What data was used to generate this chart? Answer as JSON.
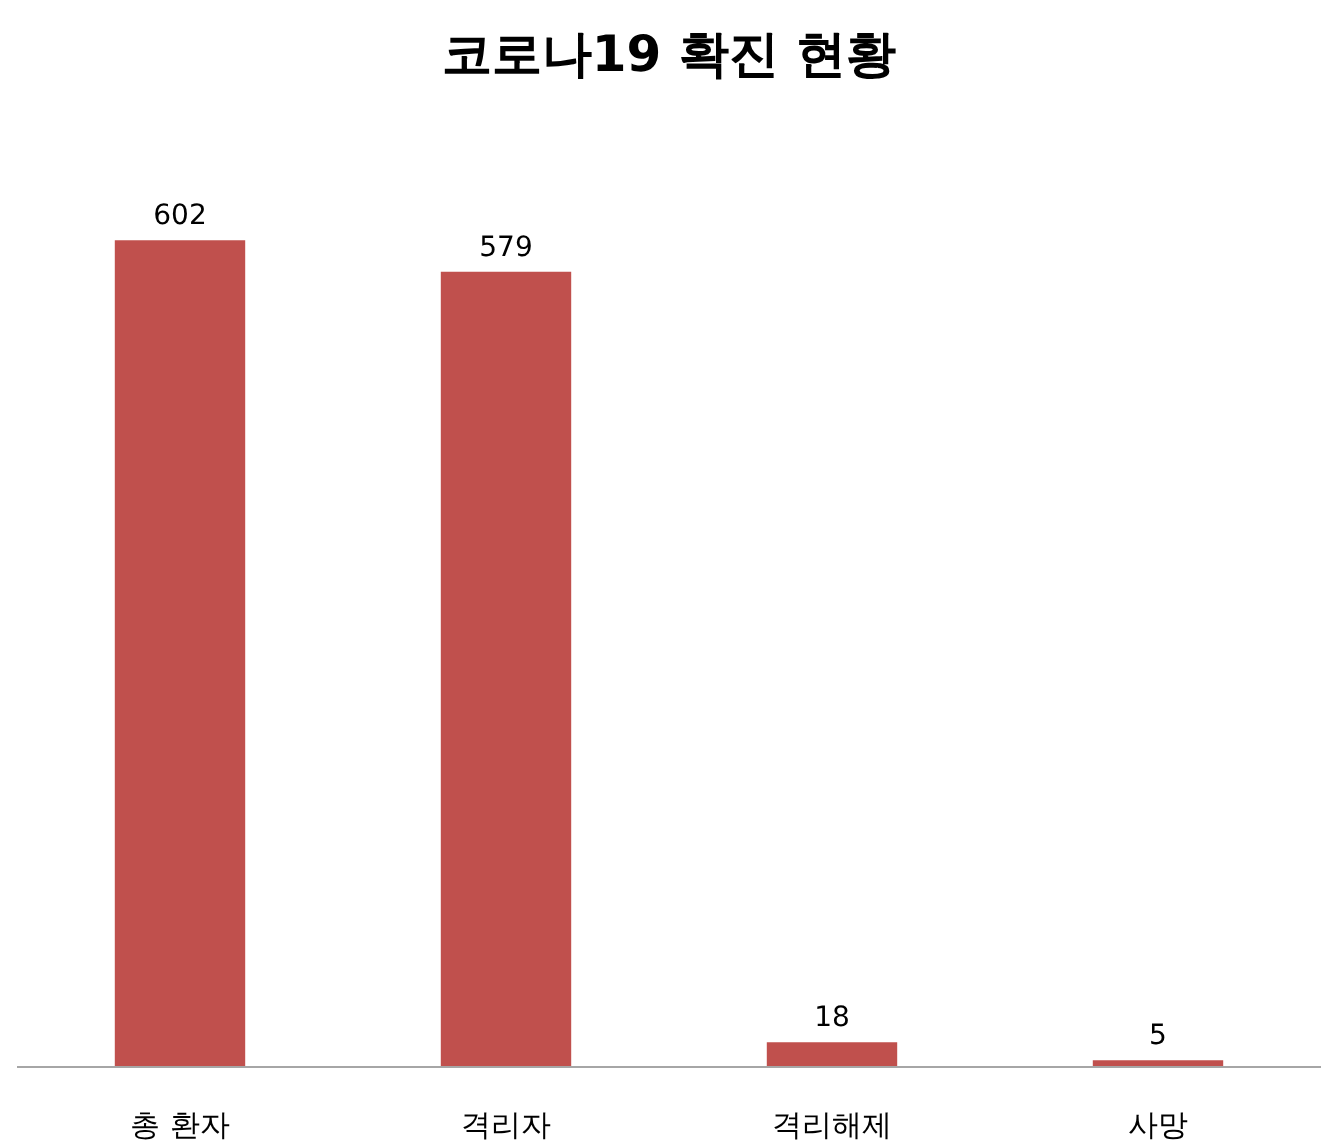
{
  "chart_data": {
    "type": "bar",
    "title": "코로나19 확진 현황",
    "categories": [
      "총 환자",
      "격리자",
      "격리해제",
      "사망"
    ],
    "values": [
      602,
      579,
      18,
      5
    ],
    "color": "#c0504d",
    "data_labels": true
  }
}
